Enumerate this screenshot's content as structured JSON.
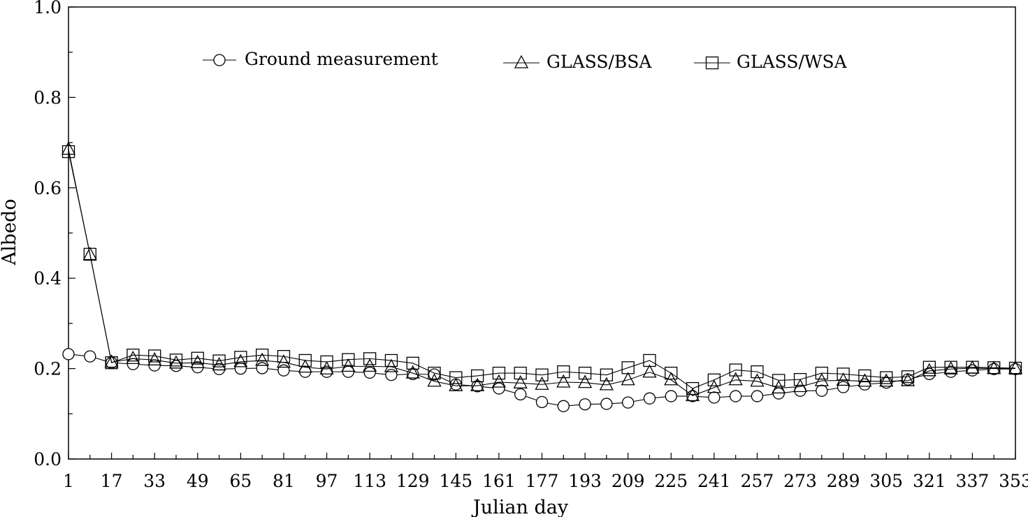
{
  "chart_data": {
    "type": "line",
    "xlabel": "Julian day",
    "ylabel": "Albedo",
    "xlim": [
      1,
      353
    ],
    "ylim": [
      0,
      1.0
    ],
    "x_ticks": [
      1,
      17,
      33,
      49,
      65,
      81,
      97,
      113,
      129,
      145,
      161,
      177,
      193,
      209,
      225,
      241,
      257,
      273,
      289,
      305,
      321,
      337,
      353
    ],
    "x_tick_labels": [
      "1",
      "17",
      "33",
      "49",
      "65",
      "81",
      "97",
      "113",
      "129",
      "145",
      "161",
      "177",
      "193",
      "209",
      "225",
      "241",
      "257",
      "273",
      "289",
      "305",
      "321",
      "337",
      "353"
    ],
    "y_ticks": [
      0,
      0.2,
      0.4,
      0.6,
      0.8,
      1.0
    ],
    "y_tick_labels": [
      "0.0",
      "0.2",
      "0.4",
      "0.6",
      "0.8",
      "1.0"
    ],
    "grid": false,
    "legend_position": "top-center",
    "x": [
      1,
      9,
      17,
      25,
      33,
      41,
      49,
      57,
      65,
      73,
      81,
      89,
      97,
      105,
      113,
      121,
      129,
      137,
      145,
      153,
      161,
      169,
      177,
      185,
      193,
      201,
      209,
      217,
      225,
      233,
      241,
      249,
      257,
      265,
      273,
      281,
      289,
      297,
      305,
      313,
      321,
      329,
      337,
      345,
      353
    ],
    "series": [
      {
        "name": "Ground measurement",
        "marker": "circle",
        "values": [
          0.232,
          0.227,
          0.213,
          0.21,
          0.207,
          0.206,
          0.203,
          0.199,
          0.2,
          0.201,
          0.196,
          0.193,
          0.193,
          0.193,
          0.191,
          0.186,
          0.188,
          0.187,
          0.165,
          0.161,
          0.156,
          0.143,
          0.126,
          0.117,
          0.121,
          0.122,
          0.125,
          0.134,
          0.139,
          0.139,
          0.136,
          0.139,
          0.139,
          0.145,
          0.151,
          0.151,
          0.159,
          0.165,
          0.169,
          0.176,
          0.188,
          0.193,
          0.196,
          0.199,
          0.199
        ]
      },
      {
        "name": "GLASS/BSA",
        "marker": "triangle",
        "values": [
          0.685,
          0.452,
          0.214,
          0.222,
          0.219,
          0.212,
          0.213,
          0.208,
          0.215,
          0.218,
          0.214,
          0.203,
          0.199,
          0.205,
          0.205,
          0.204,
          0.19,
          0.172,
          0.162,
          0.162,
          0.17,
          0.168,
          0.165,
          0.17,
          0.169,
          0.164,
          0.175,
          0.192,
          0.175,
          0.14,
          0.158,
          0.175,
          0.172,
          0.157,
          0.16,
          0.173,
          0.174,
          0.172,
          0.172,
          0.173,
          0.195,
          0.199,
          0.201,
          0.2,
          0.2
        ]
      },
      {
        "name": "GLASS/WSA",
        "marker": "square",
        "values": [
          0.68,
          0.453,
          0.213,
          0.23,
          0.228,
          0.219,
          0.223,
          0.217,
          0.225,
          0.23,
          0.227,
          0.218,
          0.215,
          0.22,
          0.222,
          0.218,
          0.212,
          0.19,
          0.18,
          0.184,
          0.19,
          0.19,
          0.186,
          0.193,
          0.19,
          0.186,
          0.202,
          0.218,
          0.19,
          0.156,
          0.175,
          0.197,
          0.193,
          0.174,
          0.176,
          0.19,
          0.188,
          0.184,
          0.18,
          0.182,
          0.203,
          0.203,
          0.203,
          0.202,
          0.201
        ]
      }
    ]
  }
}
